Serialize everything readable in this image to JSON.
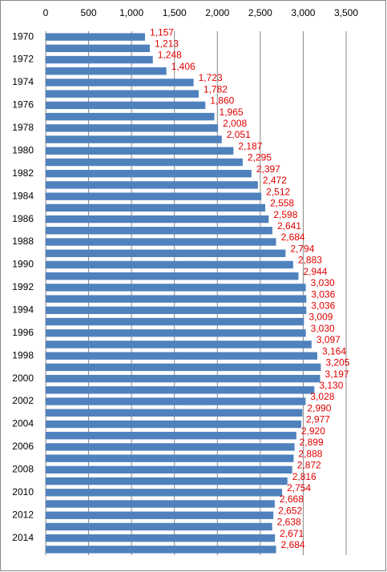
{
  "chart_data": {
    "type": "bar",
    "orientation": "horizontal",
    "categories": [
      "1970",
      null,
      "1972",
      null,
      "1974",
      null,
      "1976",
      null,
      "1978",
      null,
      "1980",
      null,
      "1982",
      null,
      "1984",
      null,
      "1986",
      null,
      "1988",
      null,
      "1990",
      null,
      "1992",
      null,
      "1994",
      null,
      "1996",
      null,
      "1998",
      null,
      "2000",
      null,
      "2002",
      null,
      "2004",
      null,
      "2006",
      null,
      "2008",
      null,
      "2010",
      null,
      "2012",
      null,
      "2014",
      null
    ],
    "values": [
      1157,
      1213,
      1248,
      1406,
      1723,
      1782,
      1860,
      1965,
      2008,
      2051,
      2187,
      2295,
      2397,
      2472,
      2512,
      2558,
      2598,
      2641,
      2684,
      2794,
      2883,
      2944,
      3030,
      3036,
      3036,
      3009,
      3030,
      3097,
      3164,
      3205,
      3197,
      3130,
      3028,
      2990,
      2977,
      2920,
      2899,
      2888,
      2872,
      2816,
      2754,
      2668,
      2652,
      2638,
      2671,
      2684
    ],
    "value_labels": [
      "1,157",
      "1,213",
      "1,248",
      "1,406",
      "1,723",
      "1,782",
      "1,860",
      "1,965",
      "2,008",
      "2,051",
      "2,187",
      "2,295",
      "2,397",
      "2,472",
      "2,512",
      "2,558",
      "2,598",
      "2,641",
      "2,684",
      "2,794",
      "2,883",
      "2,944",
      "3,030",
      "3,036",
      "3,036",
      "3,009",
      "3,030",
      "3,097",
      "3,164",
      "3,205",
      "3,197",
      "3,130",
      "3,028",
      "2,990",
      "2,977",
      "2,920",
      "2,899",
      "2,888",
      "2,872",
      "2,816",
      "2,754",
      "2,668",
      "2,652",
      "2,638",
      "2,671",
      "2,684"
    ],
    "color": "#4f81bd",
    "label_color": "#e00000",
    "xlim": [
      0,
      3500
    ],
    "xticks": [
      0,
      500,
      {
        "value": 1000,
        "label": "1,000"
      },
      {
        "value": 1500,
        "label": "1,500"
      },
      {
        "value": 2000,
        "label": "2,000"
      },
      {
        "value": 2500,
        "label": "2,500"
      },
      {
        "value": 3000,
        "label": "3,000"
      },
      {
        "value": 3500,
        "label": "3,500"
      }
    ],
    "grid": true
  }
}
